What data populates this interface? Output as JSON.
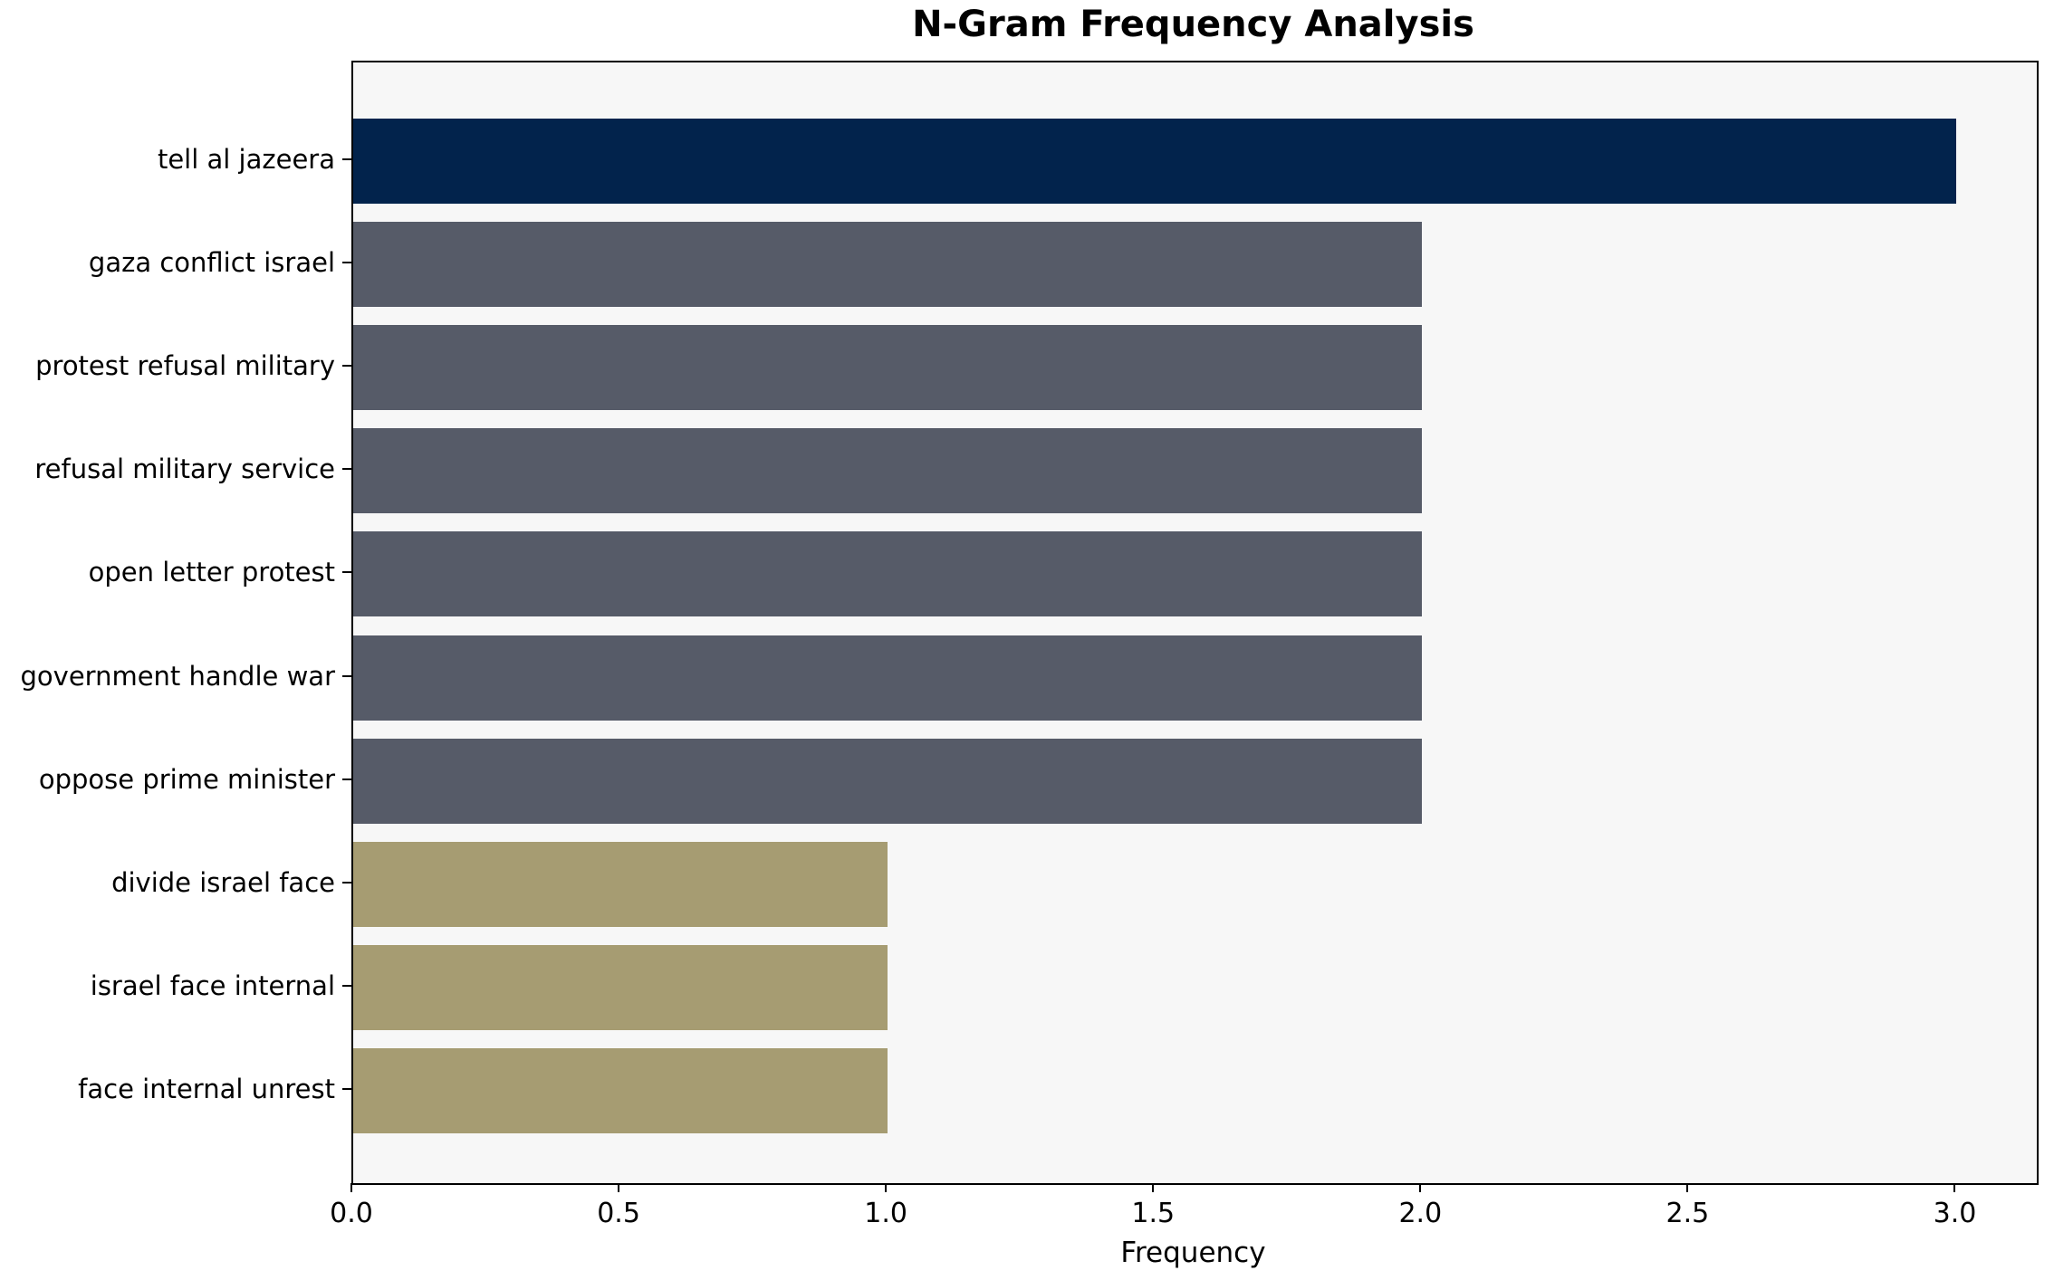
{
  "chart_data": {
    "type": "bar",
    "orientation": "horizontal",
    "title": "N-Gram Frequency Analysis",
    "xlabel": "Frequency",
    "ylabel": "",
    "categories": [
      "tell al jazeera",
      "gaza conflict israel",
      "protest refusal military",
      "refusal military service",
      "open letter protest",
      "government handle war",
      "oppose prime minister",
      "divide israel face",
      "israel face internal",
      "face internal unrest"
    ],
    "values": [
      3,
      2,
      2,
      2,
      2,
      2,
      2,
      1,
      1,
      1
    ],
    "bar_colors": [
      "#02234c",
      "#565b68",
      "#565b68",
      "#565b68",
      "#565b68",
      "#565b68",
      "#565b68",
      "#a69c72",
      "#a69c72",
      "#a69c72"
    ],
    "xlim": [
      0,
      3.15
    ],
    "xticks": [
      0.0,
      0.5,
      1.0,
      1.5,
      2.0,
      2.5,
      3.0
    ],
    "xtick_labels": [
      "0.0",
      "0.5",
      "1.0",
      "1.5",
      "2.0",
      "2.5",
      "3.0"
    ],
    "grid": false,
    "legend": null,
    "plot_background": "#f7f7f7",
    "figure_background": "#ffffff",
    "spine_color": "#000000"
  }
}
